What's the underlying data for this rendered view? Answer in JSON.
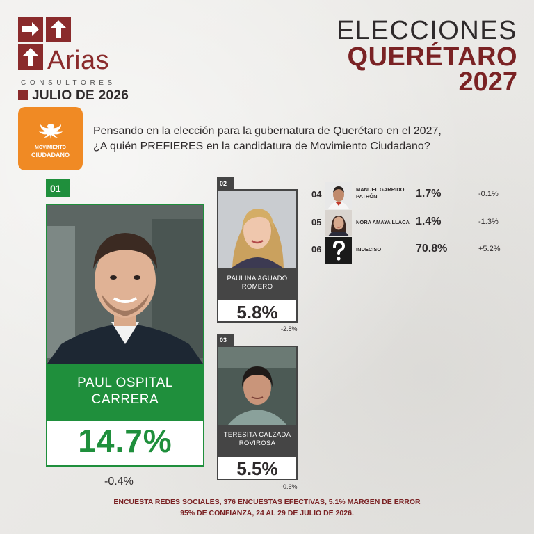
{
  "brand": {
    "name": "Arias",
    "subtitle": "CONSULTORES",
    "date": "JULIO DE 2026"
  },
  "title": {
    "line1": "ELECCIONES",
    "line2": "QUERÉTARO",
    "line3": "2027"
  },
  "party": {
    "line1": "MOVIMIENTO",
    "line2": "CIUDADANO",
    "color": "#f08a24"
  },
  "question": {
    "line1": "Pensando en la elección para la gubernatura de Querétaro en el 2027,",
    "line2": "¿A quién PREFIERES en la candidatura de Movimiento Ciudadano?"
  },
  "candidates": [
    {
      "rank": "01",
      "name_line1": "PAUL OSPITAL",
      "name_line2": "CARRERA",
      "percent": "14.7%",
      "change": "-0.4%"
    },
    {
      "rank": "02",
      "name_line1": "PAULINA AGUADO",
      "name_line2": "ROMERO",
      "percent": "5.8%",
      "change": "-2.8%"
    },
    {
      "rank": "03",
      "name_line1": "TERESITA CALZADA",
      "name_line2": "ROVIROSA",
      "percent": "5.5%",
      "change": "-0.6%"
    },
    {
      "rank": "04",
      "name_line1": "MANUEL GARRIDO",
      "name_line2": "PATRÓN",
      "percent": "1.7%",
      "change": "-0.1%"
    },
    {
      "rank": "05",
      "name_line1": "NORA AMAYA LLACA",
      "name_line2": "",
      "percent": "1.4%",
      "change": "-1.3%"
    },
    {
      "rank": "06",
      "name_line1": "INDECISO",
      "name_line2": "",
      "percent": "70.8%",
      "change": "+5.2%"
    }
  ],
  "footer": {
    "line1": "ENCUESTA REDES SOCIALES, 376 ENCUESTAS EFECTIVAS, 5.1%  MARGEN DE ERROR",
    "line2": "95% DE CONFIANZA, 24 AL 29 DE JULIO DE 2026."
  },
  "colors": {
    "brand": "#8a2b2c",
    "title_accent": "#7a2224",
    "leader_green": "#1f8f3c",
    "secondary_gray": "#454545"
  }
}
